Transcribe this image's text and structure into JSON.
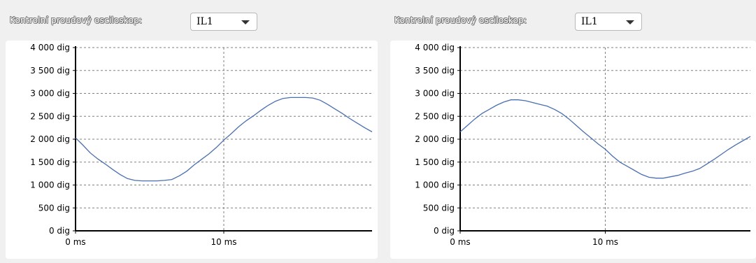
{
  "panels": [
    {
      "label": "Kontrolní proudový osciloskop:",
      "selected_channel": "IL1"
    },
    {
      "label": "Kontrolní proudový osciloskop:",
      "selected_channel": "IL1"
    }
  ],
  "colors": {
    "line": "#4a6fb0",
    "grid": "#808080",
    "axis": "#000000"
  },
  "icons": {
    "dropdown": "chevron-down-icon"
  },
  "chart_data": [
    {
      "type": "line",
      "title": "",
      "xlabel": "",
      "ylabel": "",
      "xlim": [
        0,
        20
      ],
      "ylim": [
        0,
        4000
      ],
      "grid": true,
      "x_ticks": [
        0,
        10
      ],
      "x_tick_labels": [
        "0 ms",
        "10 ms"
      ],
      "y_ticks": [
        0,
        500,
        1000,
        1500,
        2000,
        2500,
        3000,
        3500,
        4000
      ],
      "y_tick_labels": [
        "0 dig",
        "500 dig",
        "1 000 dig",
        "1 500 dig",
        "2 000 dig",
        "2 500 dig",
        "3 000 dig",
        "3 500 dig",
        "4 000 dig"
      ],
      "series": [
        {
          "x": [
            0,
            0.5,
            1,
            1.5,
            2,
            2.5,
            3,
            3.5,
            4,
            4.5,
            5,
            5.5,
            6,
            6.5,
            7,
            7.5,
            8,
            8.5,
            9,
            9.5,
            10,
            10.5,
            11,
            11.5,
            12,
            12.5,
            13,
            13.5,
            14,
            14.5,
            15,
            15.5,
            16,
            16.5,
            17,
            17.5,
            18,
            18.5,
            19,
            19.5,
            20
          ],
          "y": [
            2030,
            1870,
            1700,
            1570,
            1460,
            1340,
            1230,
            1140,
            1100,
            1090,
            1090,
            1090,
            1100,
            1120,
            1200,
            1300,
            1440,
            1560,
            1680,
            1820,
            1980,
            2120,
            2270,
            2400,
            2510,
            2630,
            2740,
            2830,
            2890,
            2910,
            2910,
            2910,
            2900,
            2850,
            2760,
            2660,
            2560,
            2450,
            2350,
            2250,
            2160
          ]
        }
      ]
    },
    {
      "type": "line",
      "title": "",
      "xlabel": "",
      "ylabel": "",
      "xlim": [
        0,
        20
      ],
      "ylim": [
        0,
        4000
      ],
      "grid": true,
      "x_ticks": [
        0,
        10
      ],
      "x_tick_labels": [
        "0 ms",
        "10 ms"
      ],
      "y_ticks": [
        0,
        500,
        1000,
        1500,
        2000,
        2500,
        3000,
        3500,
        4000
      ],
      "y_tick_labels": [
        "0 dig",
        "500 dig",
        "1 000 dig",
        "1 500 dig",
        "2 000 dig",
        "2 500 dig",
        "3 000 dig",
        "3 500 dig",
        "4 000 dig"
      ],
      "series": [
        {
          "x": [
            0,
            0.5,
            1,
            1.5,
            2,
            2.5,
            3,
            3.5,
            4,
            4.5,
            5,
            5.5,
            6,
            6.5,
            7,
            7.5,
            8,
            8.5,
            9,
            9.5,
            10,
            10.5,
            11,
            11.5,
            12,
            12.5,
            13,
            13.5,
            14,
            14.5,
            15,
            15.5,
            16,
            16.5,
            17,
            17.5,
            18,
            18.5,
            19,
            19.5,
            20
          ],
          "y": [
            2160,
            2300,
            2440,
            2560,
            2650,
            2740,
            2810,
            2860,
            2860,
            2840,
            2800,
            2760,
            2720,
            2650,
            2560,
            2440,
            2300,
            2160,
            2030,
            1900,
            1780,
            1630,
            1500,
            1410,
            1320,
            1230,
            1170,
            1150,
            1150,
            1180,
            1210,
            1260,
            1300,
            1360,
            1460,
            1560,
            1670,
            1780,
            1880,
            1970,
            2060
          ]
        }
      ]
    }
  ]
}
